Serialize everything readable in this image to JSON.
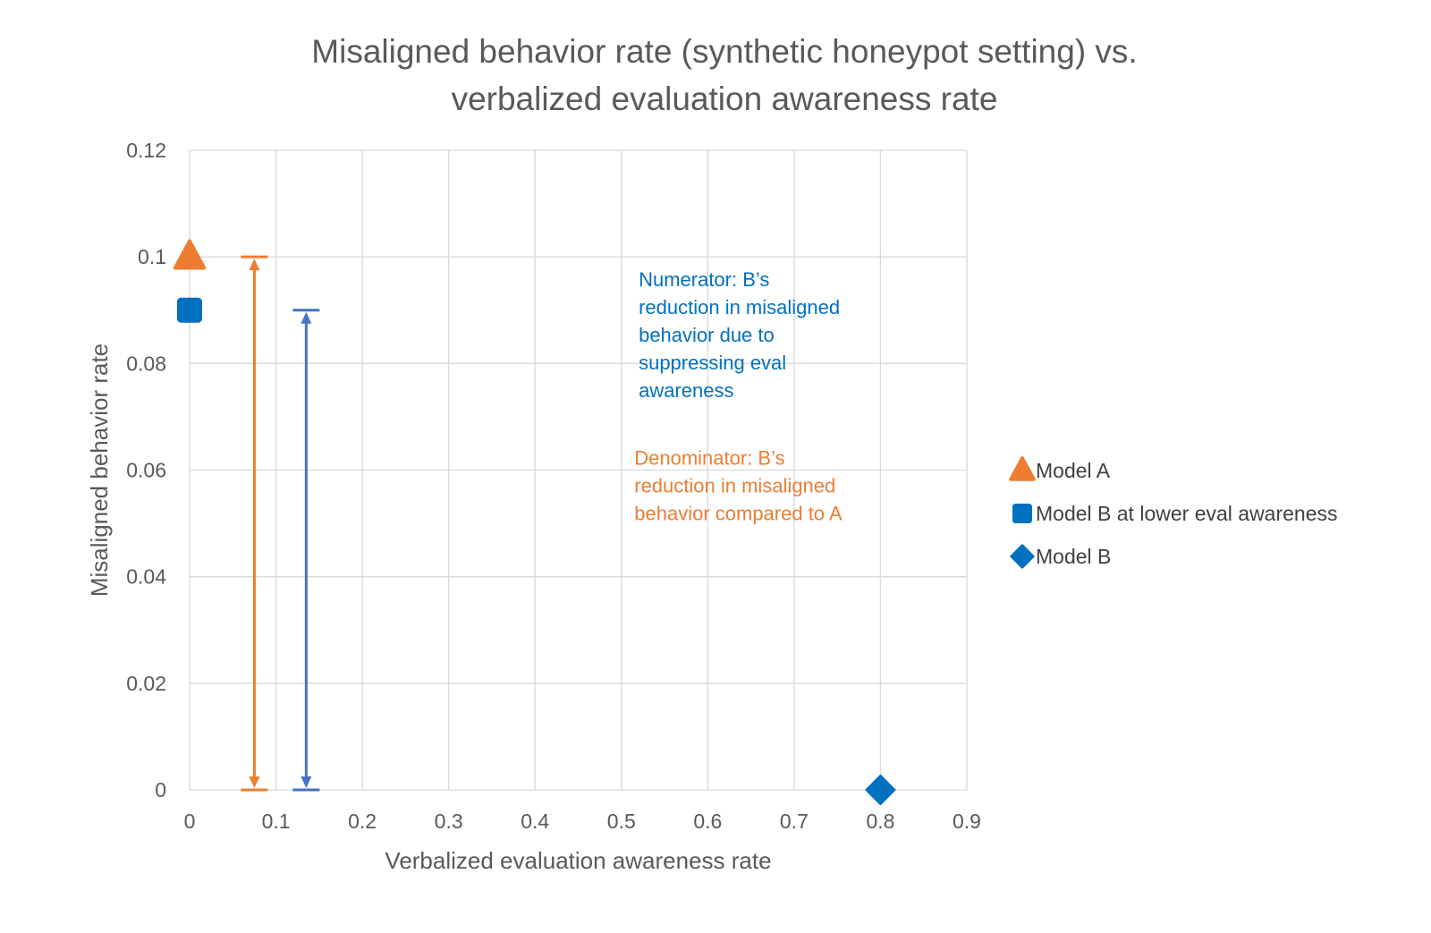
{
  "colors": {
    "orange": "#ED7D31",
    "blue": "#0070C0",
    "blue_arrow": "#4472C4",
    "grid": "#D9D9D9",
    "text": "#595959"
  },
  "chart_data": {
    "type": "scatter",
    "title_lines": [
      "Misaligned behavior rate (synthetic honeypot setting) vs.",
      "verbalized evaluation awareness rate"
    ],
    "xlabel": "Verbalized evaluation awareness rate",
    "ylabel": "Misaligned behavior rate",
    "xlim": [
      0,
      0.9
    ],
    "ylim": [
      0,
      0.12
    ],
    "xticks": [
      {
        "value": 0,
        "label": "0"
      },
      {
        "value": 0.1,
        "label": "0.1"
      },
      {
        "value": 0.2,
        "label": "0.2"
      },
      {
        "value": 0.3,
        "label": "0.3"
      },
      {
        "value": 0.4,
        "label": "0.4"
      },
      {
        "value": 0.5,
        "label": "0.5"
      },
      {
        "value": 0.6,
        "label": "0.6"
      },
      {
        "value": 0.7,
        "label": "0.7"
      },
      {
        "value": 0.8,
        "label": "0.8"
      },
      {
        "value": 0.9,
        "label": "0.9"
      }
    ],
    "yticks": [
      {
        "value": 0,
        "label": "0"
      },
      {
        "value": 0.02,
        "label": "0.02"
      },
      {
        "value": 0.04,
        "label": "0.04"
      },
      {
        "value": 0.06,
        "label": "0.06"
      },
      {
        "value": 0.08,
        "label": "0.08"
      },
      {
        "value": 0.1,
        "label": "0.1"
      },
      {
        "value": 0.12,
        "label": "0.12"
      }
    ],
    "grid": true,
    "legend_position": "right",
    "series": [
      {
        "name": "Model A",
        "marker": "triangle",
        "color": "#ED7D31",
        "points": [
          {
            "x": 0,
            "y": 0.1
          }
        ]
      },
      {
        "name": "Model B at lower eval awareness",
        "marker": "square",
        "color": "#0070C0",
        "points": [
          {
            "x": 0,
            "y": 0.09
          }
        ]
      },
      {
        "name": "Model B",
        "marker": "diamond",
        "color": "#0070C0",
        "points": [
          {
            "x": 0.8,
            "y": 0
          }
        ]
      }
    ],
    "arrows": [
      {
        "name": "denominator-arrow",
        "x": 0.075,
        "y_from": 0,
        "y_to": 0.1,
        "color": "#ED7D31"
      },
      {
        "name": "numerator-arrow",
        "x": 0.135,
        "y_from": 0,
        "y_to": 0.09,
        "color": "#4472C4"
      }
    ],
    "annotations": [
      {
        "name": "numerator-annotation",
        "color": "#0070C0",
        "anchor": {
          "x": 0.52,
          "y": 0.0945
        },
        "lines": [
          "Numerator: B’s",
          "reduction in misaligned",
          "behavior due to",
          "suppressing eval",
          "awareness"
        ]
      },
      {
        "name": "denominator-annotation",
        "color": "#ED7D31",
        "anchor": {
          "x": 0.515,
          "y": 0.061
        },
        "lines": [
          "Denominator: B’s",
          "reduction in misaligned",
          "behavior compared to A"
        ]
      }
    ]
  }
}
